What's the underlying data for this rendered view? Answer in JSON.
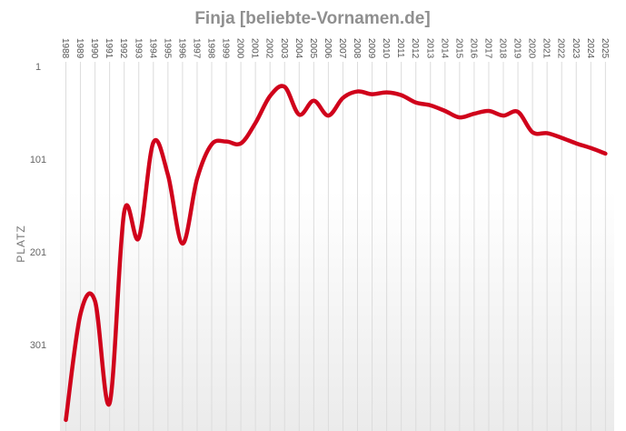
{
  "chart_data": {
    "type": "line",
    "title": "Finja [beliebte-Vornamen.de]",
    "xlabel": "",
    "ylabel": "PLATZ",
    "y_reversed": true,
    "ylim": [
      1,
      380
    ],
    "yticks": [
      "1",
      "101",
      "201",
      "301"
    ],
    "grid": "vertical",
    "legend": "none",
    "colors": {
      "line": "#d0021b",
      "title": "#8f8f8f",
      "background_bottom": "#ebebeb"
    },
    "x": [
      "1988",
      "1989",
      "1990",
      "1991",
      "1992",
      "1993",
      "1994",
      "1995",
      "1996",
      "1997",
      "1998",
      "1999",
      "2000",
      "2001",
      "2002",
      "2003",
      "2004",
      "2005",
      "2006",
      "2007",
      "2008",
      "2009",
      "2010",
      "2011",
      "2012",
      "2013",
      "2014",
      "2015",
      "2016",
      "2017",
      "2018",
      "2019",
      "2020",
      "2021",
      "2022",
      "2023",
      "2024",
      "2025"
    ],
    "series": [
      {
        "values": [
          382,
          268,
          254,
          364,
          158,
          186,
          83,
          118,
          192,
          122,
          85,
          82,
          84,
          62,
          33,
          23,
          53,
          38,
          54,
          35,
          28,
          31,
          29,
          32,
          40,
          43,
          49,
          56,
          52,
          49,
          54,
          50,
          72,
          73,
          78,
          84,
          89,
          95
        ]
      }
    ]
  }
}
